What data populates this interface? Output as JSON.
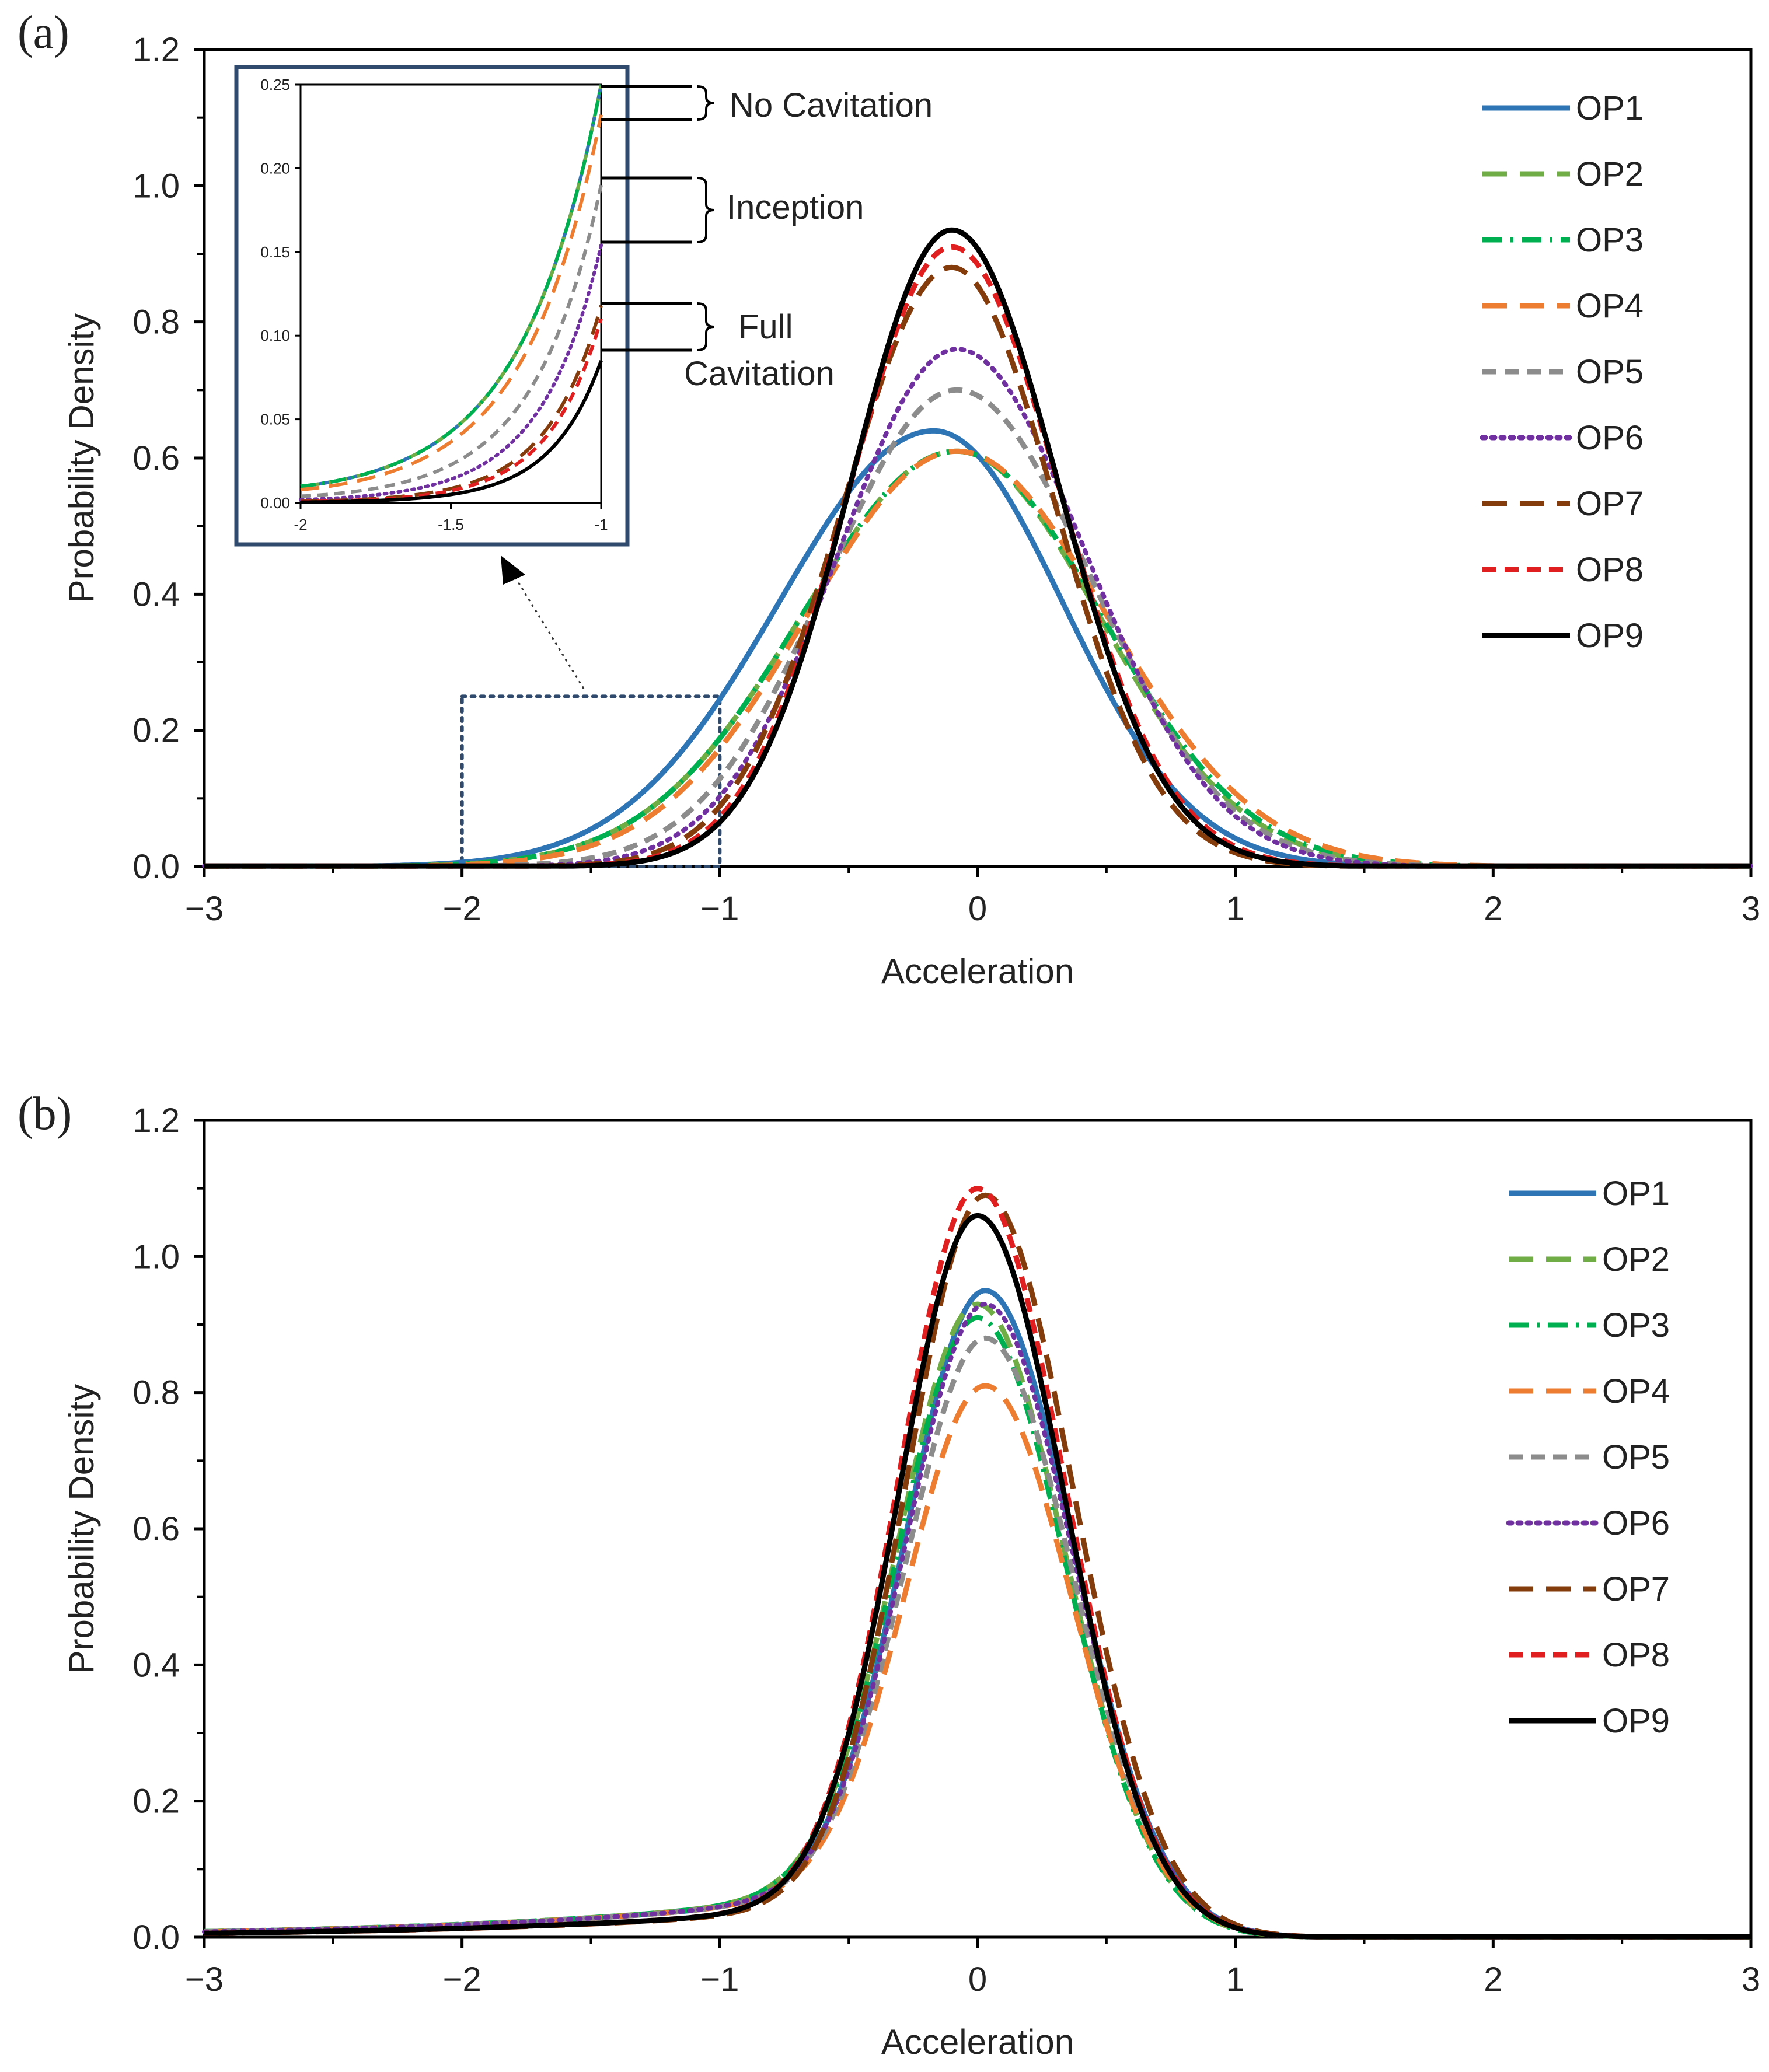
{
  "chart_data": [
    {
      "type": "line",
      "panel_label": "(a)",
      "xlabel": "Acceleration",
      "ylabel": "Probability Density",
      "xlim": [
        -3,
        3
      ],
      "ylim": [
        0,
        1.2
      ],
      "xticks": [
        "−3",
        "−2",
        "−1",
        "0",
        "1",
        "2",
        "3"
      ],
      "yticks": [
        "0.0",
        "0.2",
        "0.4",
        "0.6",
        "0.8",
        "1.0",
        "1.2"
      ],
      "legend_position": "right",
      "series": [
        {
          "name": "OP1",
          "color": "#2E75B6",
          "style": "solid",
          "peak_x": -0.17,
          "peak_y": 0.64,
          "sigma_left": 0.6,
          "sigma_right": 0.5
        },
        {
          "name": "OP2",
          "color": "#70AD47",
          "style": "longdash",
          "peak_x": -0.08,
          "peak_y": 0.61,
          "sigma_left": 0.6,
          "sigma_right": 0.55
        },
        {
          "name": "OP3",
          "color": "#00B050",
          "style": "dashdot",
          "peak_x": -0.08,
          "peak_y": 0.61,
          "sigma_left": 0.6,
          "sigma_right": 0.56
        },
        {
          "name": "OP4",
          "color": "#ED7D31",
          "style": "longdash",
          "peak_x": -0.08,
          "peak_y": 0.61,
          "sigma_left": 0.58,
          "sigma_right": 0.58
        },
        {
          "name": "OP5",
          "color": "#8C8C8C",
          "style": "dash",
          "peak_x": -0.08,
          "peak_y": 0.7,
          "sigma_left": 0.5,
          "sigma_right": 0.52
        },
        {
          "name": "OP6",
          "color": "#7030A0",
          "style": "dot",
          "peak_x": -0.08,
          "peak_y": 0.76,
          "sigma_left": 0.46,
          "sigma_right": 0.5
        },
        {
          "name": "OP7",
          "color": "#843C0C",
          "style": "longdash",
          "peak_x": -0.1,
          "peak_y": 0.88,
          "sigma_left": 0.42,
          "sigma_right": 0.4
        },
        {
          "name": "OP8",
          "color": "#E02020",
          "style": "dash",
          "peak_x": -0.1,
          "peak_y": 0.91,
          "sigma_left": 0.4,
          "sigma_right": 0.42
        },
        {
          "name": "OP9",
          "color": "#000000",
          "style": "solid",
          "peak_x": -0.1,
          "peak_y": 0.935,
          "sigma_left": 0.39,
          "sigma_right": 0.41
        }
      ],
      "zoom_region": {
        "x": [
          -2,
          -1
        ],
        "y": [
          0,
          0.25
        ]
      },
      "inset": {
        "xlim": [
          -2,
          -1
        ],
        "ylim": [
          0,
          0.25
        ],
        "xticks": [
          "-2",
          "-1.5",
          "-1"
        ],
        "yticks": [
          "0.00",
          "0.05",
          "0.10",
          "0.15",
          "0.20",
          "0.25"
        ]
      },
      "annotations": {
        "no_cavitation": "No Cavitation",
        "inception": "Inception",
        "full_line1": "Full",
        "full_line2": "Cavitation"
      }
    },
    {
      "type": "line",
      "panel_label": "(b)",
      "xlabel": "Acceleration",
      "ylabel": "Probability Density",
      "xlim": [
        -3,
        3
      ],
      "ylim": [
        0,
        1.2
      ],
      "xticks": [
        "−3",
        "−2",
        "−1",
        "0",
        "1",
        "2",
        "3"
      ],
      "yticks": [
        "0.0",
        "0.2",
        "0.4",
        "0.6",
        "0.8",
        "1.0",
        "1.2"
      ],
      "legend_position": "right",
      "series": [
        {
          "name": "OP1",
          "color": "#2E75B6",
          "style": "solid",
          "peak_x": 0.03,
          "peak_y": 0.95
        },
        {
          "name": "OP2",
          "color": "#70AD47",
          "style": "longdash",
          "peak_x": 0.0,
          "peak_y": 0.93
        },
        {
          "name": "OP3",
          "color": "#00B050",
          "style": "dashdot",
          "peak_x": 0.0,
          "peak_y": 0.91
        },
        {
          "name": "OP4",
          "color": "#ED7D31",
          "style": "longdash",
          "peak_x": 0.03,
          "peak_y": 0.81
        },
        {
          "name": "OP5",
          "color": "#8C8C8C",
          "style": "dash",
          "peak_x": 0.03,
          "peak_y": 0.88
        },
        {
          "name": "OP6",
          "color": "#7030A0",
          "style": "dot",
          "peak_x": 0.03,
          "peak_y": 0.93
        },
        {
          "name": "OP7",
          "color": "#843C0C",
          "style": "longdash",
          "peak_x": 0.03,
          "peak_y": 1.09
        },
        {
          "name": "OP8",
          "color": "#E02020",
          "style": "dash",
          "peak_x": 0.0,
          "peak_y": 1.1
        },
        {
          "name": "OP9",
          "color": "#000000",
          "style": "solid",
          "peak_x": 0.0,
          "peak_y": 1.06
        }
      ]
    }
  ]
}
